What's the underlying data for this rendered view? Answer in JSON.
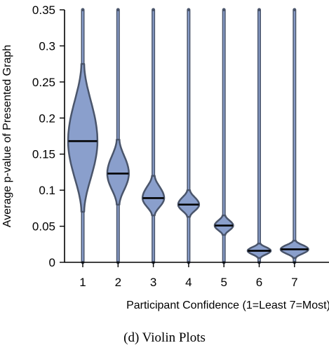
{
  "chart_data": {
    "type": "violin",
    "categories": [
      "1",
      "2",
      "3",
      "4",
      "5",
      "6",
      "7"
    ],
    "medians": [
      0.168,
      0.123,
      0.089,
      0.08,
      0.051,
      0.016,
      0.018
    ],
    "body_ranges": [
      [
        0.07,
        0.275
      ],
      [
        0.08,
        0.17
      ],
      [
        0.065,
        0.12
      ],
      [
        0.063,
        0.1
      ],
      [
        0.038,
        0.065
      ],
      [
        0.006,
        0.026
      ],
      [
        0.006,
        0.03
      ]
    ],
    "peak_widths": [
      0.95,
      0.7,
      0.7,
      0.68,
      0.6,
      0.75,
      0.9
    ],
    "whisker_max": [
      0.35,
      0.35,
      0.35,
      0.35,
      0.35,
      0.35,
      0.35
    ],
    "whisker_min": [
      0,
      0,
      0,
      0,
      0,
      0,
      0
    ],
    "xlabel": "Participant Confidence (1=Least 7=Most)",
    "ylabel": "Average p-value of Presented Graph",
    "ylim": [
      0,
      0.35
    ],
    "yticks": [
      0,
      0.05,
      0.1,
      0.15,
      0.2,
      0.25,
      0.3,
      0.35
    ],
    "ytick_labels": [
      "0",
      "0.05",
      "0.1",
      "0.15",
      "0.2",
      "0.25",
      "0.3",
      "0.35"
    ],
    "colors": {
      "fill": "#8A9FCC",
      "outline": "#4A556B",
      "median": "#000000"
    },
    "caption": "(d) Violin Plots"
  }
}
